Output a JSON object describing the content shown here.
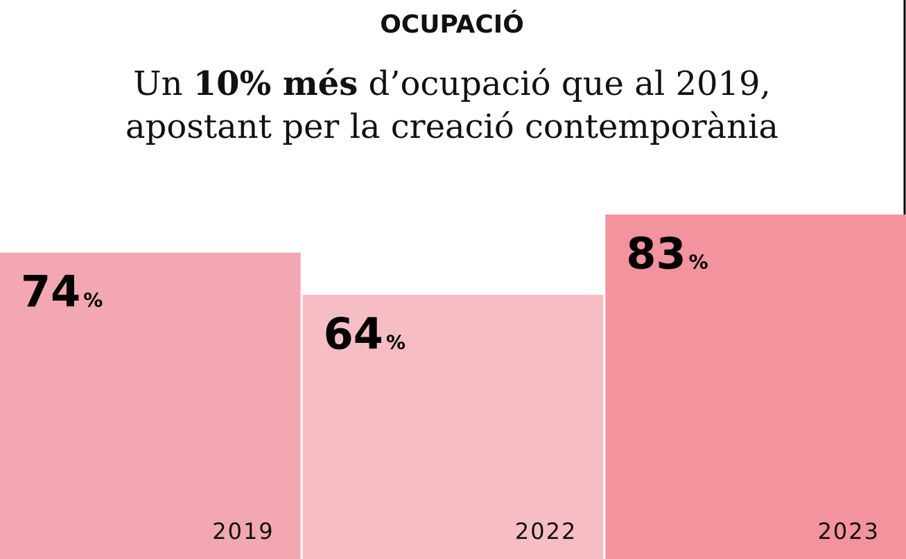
{
  "chart_data": {
    "type": "bar",
    "title": "OCUPACIÓ",
    "subtitle": [
      [
        {
          "text": "Un "
        },
        {
          "text": "10% més",
          "bold": true
        },
        {
          "text": " d’ocupació que al 2019,"
        }
      ],
      [
        {
          "text": "apostant per la creació contemporània"
        }
      ]
    ],
    "categories": [
      "2019",
      "2022",
      "2023"
    ],
    "values": [
      74,
      64,
      83
    ],
    "value_labels": [
      "74%",
      "64%",
      "83%"
    ],
    "colors": [
      "#f3a8b1",
      "#f6bec4",
      "#f2939d"
    ],
    "ylim": [
      0,
      100
    ]
  }
}
